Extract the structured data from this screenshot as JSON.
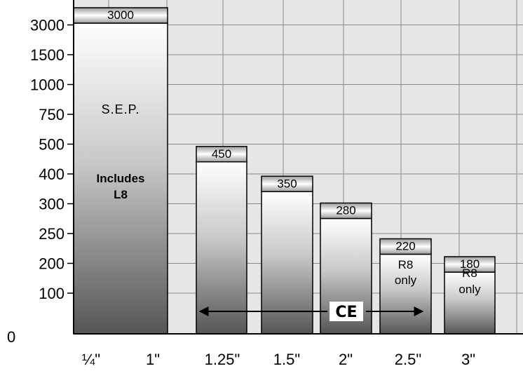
{
  "chart_data": {
    "type": "bar",
    "title": "",
    "xlabel": "",
    "ylabel": "",
    "y_tick_labels": [
      "0",
      "100",
      "200",
      "250",
      "300",
      "400",
      "500",
      "750",
      "1000",
      "1500",
      "3000"
    ],
    "x_tick_labels": [
      "¼\"",
      "1\"",
      "1.25\"",
      "1.5\"",
      "2\"",
      "2.5\"",
      "3\""
    ],
    "y_scale": "non-linear ordinal ticks (each gridline is one step)",
    "grid": true,
    "bars": [
      {
        "x_from": "¼\"",
        "x_to": "1\"",
        "value": 3000,
        "label": "3000",
        "annotations": [
          "S.E.P.",
          "Includes",
          "L8"
        ]
      },
      {
        "x": "1.25\"",
        "value": 450,
        "label": "450",
        "annotations": []
      },
      {
        "x": "1.5\"",
        "value": 350,
        "label": "350",
        "annotations": []
      },
      {
        "x": "2\"",
        "value": 280,
        "label": "280",
        "annotations": []
      },
      {
        "x": "2.5\"",
        "value": 220,
        "label": "220",
        "annotations": [
          "R8",
          "only"
        ]
      },
      {
        "x": "3\"",
        "value": 180,
        "label": "180",
        "annotations": [
          "R8",
          "only"
        ]
      }
    ],
    "range_arrow": {
      "from": "1.25\"",
      "to": "2.5\"",
      "symbol": "CE"
    },
    "colors": {
      "bar_dark": "#5a5a5a",
      "bar_light": "#ffffff",
      "plot_bg": "#e6e6e6",
      "grid": "#8a8a8a"
    }
  }
}
